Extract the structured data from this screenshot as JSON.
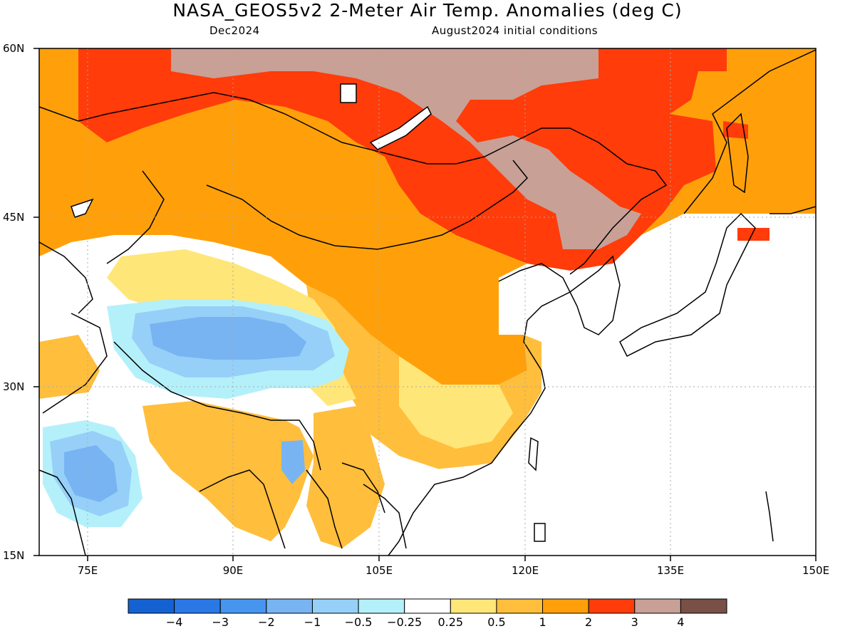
{
  "header": {
    "title": "NASA_GEOS5v2 2-Meter Air Temp. Anomalies (deg C)",
    "valid_month": "Dec2024",
    "initial_conditions": "August2024 initial conditions"
  },
  "axes": {
    "lat_labels": [
      "60N",
      "45N",
      "30N",
      "15N"
    ],
    "lon_labels": [
      "75E",
      "90E",
      "105E",
      "120E",
      "135E",
      "150E"
    ]
  },
  "colorbar": {
    "labels": [
      "−4",
      "−3",
      "−2",
      "−1",
      "−0.5",
      "−0.25",
      "0.25",
      "0.5",
      "1",
      "2",
      "3",
      "4"
    ],
    "colors": [
      "#1462d2",
      "#2a78e6",
      "#4696f0",
      "#78b4f2",
      "#96d0f8",
      "#b4f0fa",
      "#ffffff",
      "#ffe678",
      "#ffbe3c",
      "#ffa00a",
      "#ff3c0a",
      "#c8a096",
      "#785046"
    ]
  },
  "map_colors": {
    "coastline": "#000000",
    "grid": "#aaaaaa"
  }
}
